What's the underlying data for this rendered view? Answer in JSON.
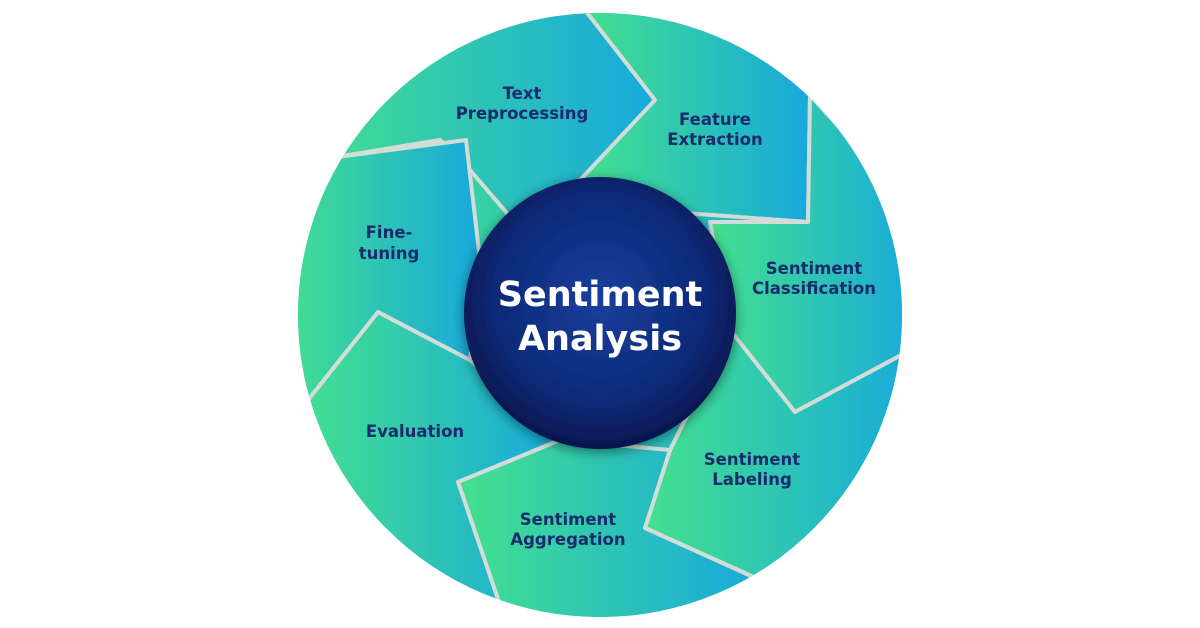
{
  "hub": {
    "line1": "Sentiment",
    "line2": "Analysis"
  },
  "stages": [
    {
      "line1": "Text",
      "line2": "Preprocessing"
    },
    {
      "line1": "Feature",
      "line2": "Extraction"
    },
    {
      "line1": "Sentiment",
      "line2": "Classification"
    },
    {
      "line1": "Sentiment",
      "line2": "Labeling"
    },
    {
      "line1": "Sentiment",
      "line2": "Aggregation"
    },
    {
      "line1": "Evaluation",
      "line2": ""
    },
    {
      "line1": "Fine-",
      "line2": "tuning"
    }
  ],
  "colors": {
    "segment_start": "#44e08e",
    "segment_end": "#17a9dc",
    "segment_border": "#d4dcd8",
    "label_text": "#1b2a6b",
    "hub_inner": "#183f9c",
    "hub_outer": "#06164e"
  }
}
